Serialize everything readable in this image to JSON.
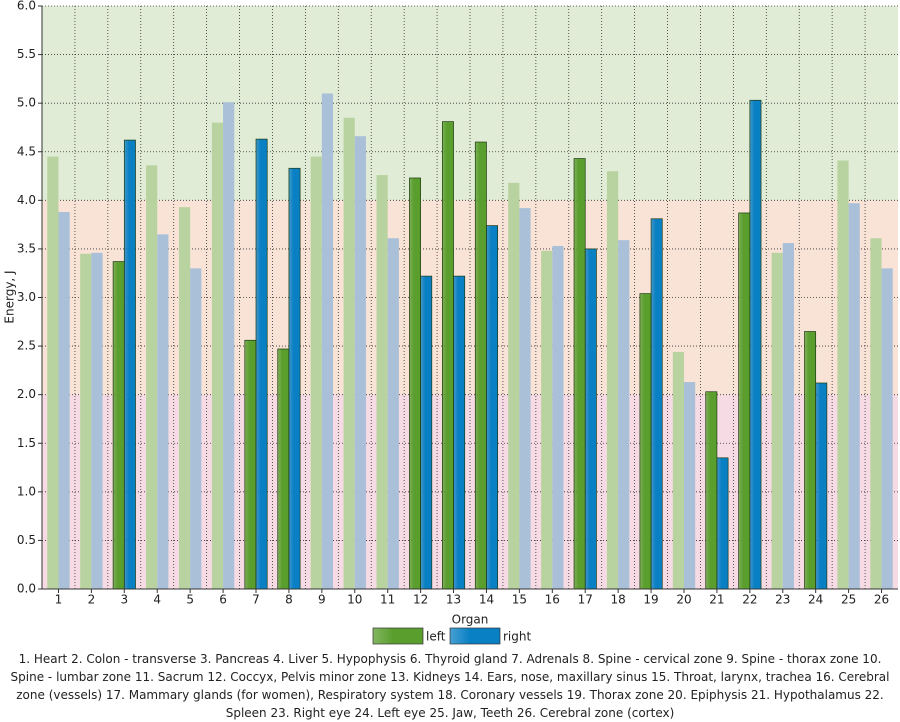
{
  "chart_data": {
    "type": "bar",
    "x_label": "Organ",
    "y_label": "Energy, J",
    "categories": [
      "1",
      "2",
      "3",
      "4",
      "5",
      "6",
      "7",
      "8",
      "9",
      "10",
      "11",
      "12",
      "13",
      "14",
      "15",
      "16",
      "17",
      "18",
      "19",
      "20",
      "21",
      "22",
      "23",
      "24",
      "25",
      "26"
    ],
    "series": [
      {
        "name": "left",
        "color": "#5a9e2e",
        "faded_color": "#b9d3a0",
        "values": [
          4.45,
          3.45,
          3.37,
          4.36,
          3.93,
          4.8,
          2.56,
          2.47,
          4.45,
          4.85,
          4.26,
          4.23,
          4.81,
          4.6,
          4.18,
          3.48,
          4.43,
          4.3,
          3.04,
          2.44,
          2.03,
          3.87,
          3.46,
          2.65,
          4.41,
          3.61
        ]
      },
      {
        "name": "right",
        "color": "#0a80c4",
        "faded_color": "#a9c0d8",
        "values": [
          3.88,
          3.46,
          4.62,
          3.65,
          3.3,
          5.01,
          4.63,
          4.33,
          5.1,
          4.66,
          3.61,
          3.22,
          3.22,
          3.74,
          3.92,
          3.53,
          3.5,
          3.59,
          3.81,
          2.13,
          1.35,
          5.03,
          3.56,
          2.12,
          3.97,
          3.3
        ]
      }
    ],
    "highlighted": [
      false,
      false,
      true,
      false,
      false,
      false,
      true,
      true,
      false,
      false,
      false,
      true,
      true,
      true,
      false,
      false,
      true,
      false,
      true,
      false,
      true,
      true,
      false,
      true,
      false,
      false
    ],
    "zones": [
      {
        "from": 0,
        "to": 2,
        "color": "#f7dbe4"
      },
      {
        "from": 2,
        "to": 4,
        "color": "#f8e3d6"
      },
      {
        "from": 4,
        "to": 6,
        "color": "#e0ecd6"
      }
    ],
    "ylim": [
      0,
      6
    ],
    "yticks": [
      {
        "value": 0,
        "label": "0.0"
      },
      {
        "value": 0.5,
        "label": "0.5"
      },
      {
        "value": 1,
        "label": "1.0"
      },
      {
        "value": 1.5,
        "label": "1.5"
      },
      {
        "value": 2,
        "label": "2.0"
      },
      {
        "value": 2.5,
        "label": "2.5"
      },
      {
        "value": 3,
        "label": "3.0"
      },
      {
        "value": 3.5,
        "label": "3.5"
      },
      {
        "value": 4,
        "label": "4.0"
      },
      {
        "value": 4.5,
        "label": "4.5"
      },
      {
        "value": 5,
        "label": "5.0"
      },
      {
        "value": 5.5,
        "label": "5.5"
      },
      {
        "value": 6,
        "label": "6.0"
      }
    ],
    "grid": true,
    "note": "1. Heart  2. Colon - transverse  3. Pancreas  4. Liver  5. Hypophysis  6. Thyroid gland  7. Adrenals  8. Spine - cervical zone  9. Spine - thorax zone  10. Spine - lumbar zone  11. Sacrum  12. Coccyx, Pelvis minor zone  13. Kidneys  14. Ears, nose, maxillary sinus  15. Throat, larynx, trachea  16. Cerebral zone (vessels)  17. Mammary glands (for women), Respiratory system  18. Coronary vessels  19. Thorax zone  20. Epiphysis  21. Hypothalamus  22. Spleen  23. Right eye  24. Left eye  25. Jaw, Teeth  26. Cerebral zone (cortex)"
  }
}
